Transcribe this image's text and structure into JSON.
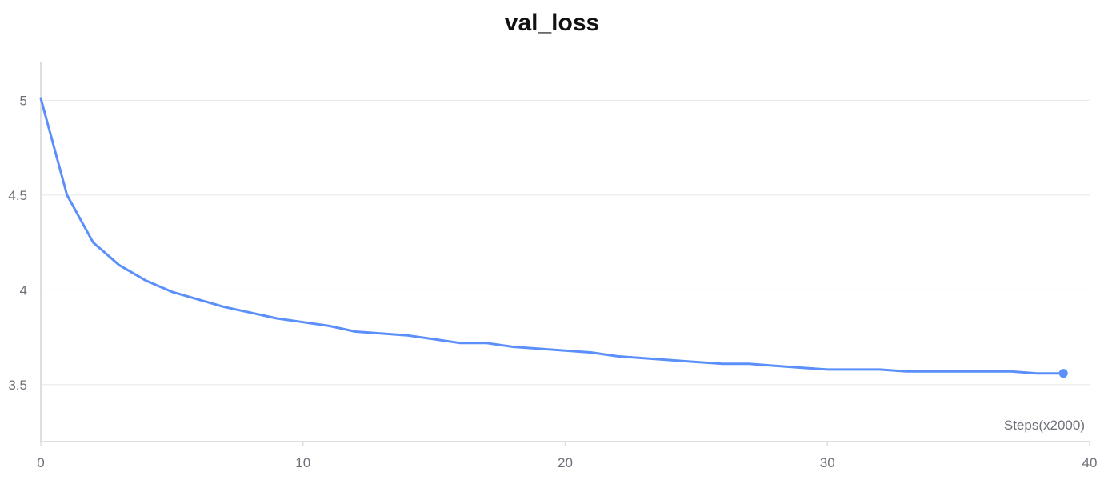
{
  "chart_data": {
    "type": "line",
    "title": "val_loss",
    "xlabel": "Steps(x2000)",
    "ylabel": "",
    "xlim": [
      0,
      40
    ],
    "ylim": [
      3.2,
      5.2
    ],
    "x_ticks": [
      0,
      10,
      20,
      30,
      40
    ],
    "y_ticks": [
      3.5,
      4,
      4.5,
      5
    ],
    "x_tick_labels": [
      "0",
      "10",
      "20",
      "30",
      "40"
    ],
    "y_tick_labels": [
      "3.5",
      "4",
      "4.5",
      "5"
    ],
    "grid": true,
    "line_color": "#5b8ff9",
    "series": [
      {
        "x": [
          0,
          1,
          2,
          3,
          4,
          5,
          6,
          7,
          8,
          9,
          10,
          11,
          12,
          13,
          14,
          15,
          16,
          17,
          18,
          19,
          20,
          21,
          22,
          23,
          24,
          25,
          26,
          27,
          28,
          29,
          30,
          31,
          32,
          33,
          34,
          35,
          36,
          37,
          38,
          39
        ],
        "values": [
          5.01,
          4.5,
          4.25,
          4.13,
          4.05,
          3.99,
          3.95,
          3.91,
          3.88,
          3.85,
          3.83,
          3.81,
          3.78,
          3.77,
          3.76,
          3.74,
          3.72,
          3.72,
          3.7,
          3.69,
          3.68,
          3.67,
          3.65,
          3.64,
          3.63,
          3.62,
          3.61,
          3.61,
          3.6,
          3.59,
          3.58,
          3.58,
          3.58,
          3.57,
          3.57,
          3.57,
          3.57,
          3.57,
          3.56,
          3.56
        ]
      }
    ]
  }
}
